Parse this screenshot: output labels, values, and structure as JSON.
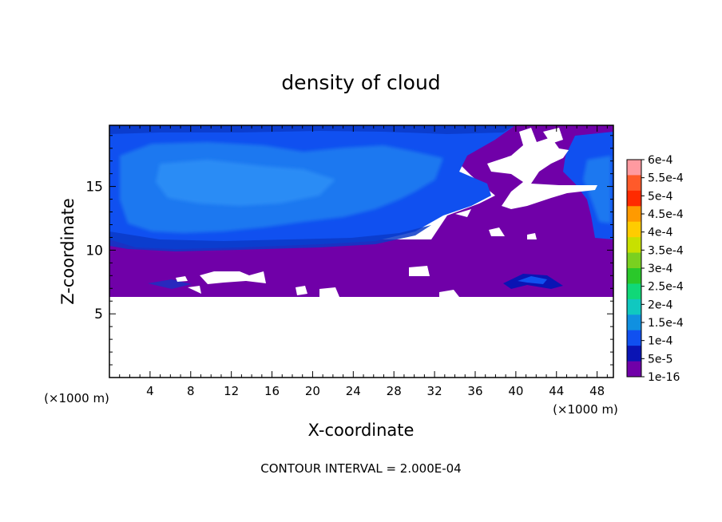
{
  "chart_data": {
    "type": "heatmap",
    "title": "density of cloud",
    "xlabel": "X-coordinate",
    "ylabel": "Z-coordinate",
    "x_unit_left": "(×1000 m)",
    "x_unit_right": "(×1000 m)",
    "xlim": [
      0,
      49.6
    ],
    "ylim": [
      0,
      19.8
    ],
    "x_ticks": [
      4,
      8,
      12,
      16,
      20,
      24,
      28,
      32,
      36,
      40,
      44,
      48
    ],
    "y_ticks": [
      5,
      10,
      15
    ],
    "footer": "CONTOUR INTERVAL = 2.000E-04",
    "colorbar": {
      "labels": [
        "6e-4",
        "5.5e-4",
        "5e-4",
        "4.5e-4",
        "4e-4",
        "3.5e-4",
        "3e-4",
        "2.5e-4",
        "2e-4",
        "1.5e-4",
        "1e-4",
        "5e-5",
        "1e-16"
      ],
      "colors": [
        "#ff9aa0",
        "#ff5a2a",
        "#ff2a00",
        "#ff9a00",
        "#ffcc00",
        "#c8e000",
        "#7ad020",
        "#2ac82a",
        "#10d878",
        "#10c8c0",
        "#1090e0",
        "#1050f0",
        "#0a14b4",
        "#7000a8"
      ]
    },
    "fields": {
      "cloud_top_layer": "1e-4 to 1.5e-4 (blue), z ≈ 10–19.8, x ≈ 0–35 and x ≈ 44–49.6",
      "cloud_base_layer": "1e-16 (purple), z ≈ 6.2–10",
      "clear_air_below": "no cloud, z < 6.2"
    }
  }
}
